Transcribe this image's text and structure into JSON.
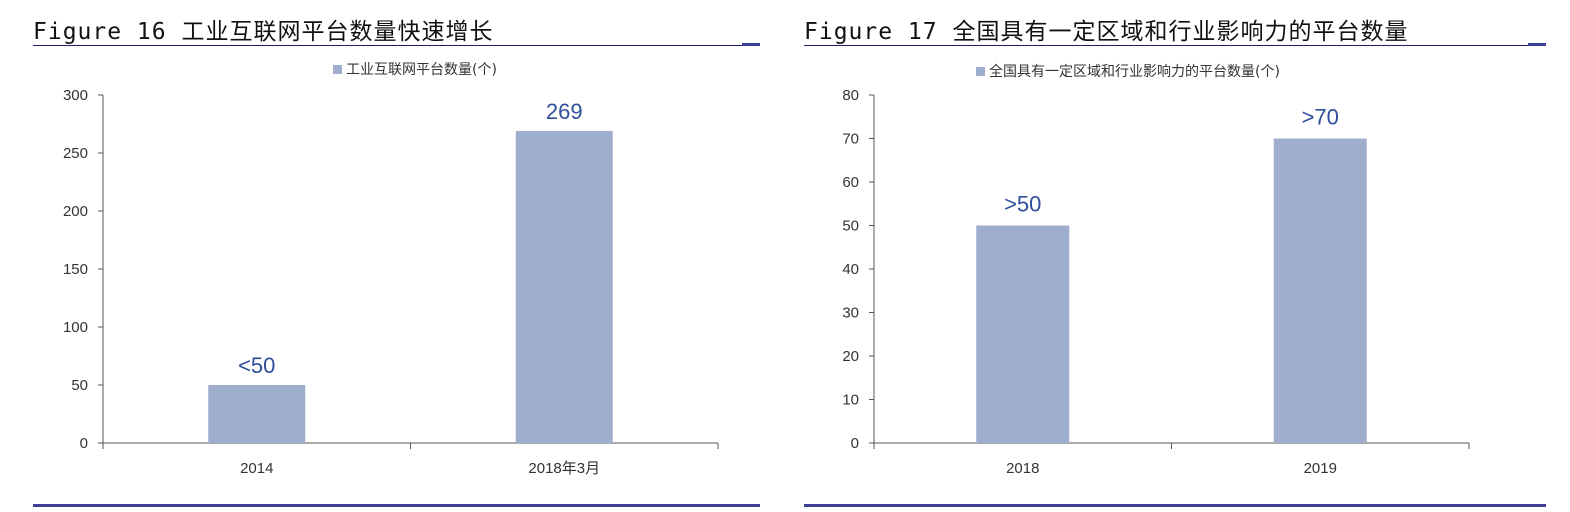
{
  "figures": [
    {
      "title": "Figure 16 工业互联网平台数量快速增长",
      "legend": "工业互联网平台数量(个)",
      "bar_color": "#a0aecd",
      "label_color": "#2f4f9a"
    },
    {
      "title": "Figure 17 全国具有一定区域和行业影响力的平台数量",
      "legend": "全国具有一定区域和行业影响力的平台数量(个)",
      "bar_color": "#a0aecd",
      "label_color": "#2f4f9a"
    }
  ],
  "chart_data": [
    {
      "type": "bar",
      "title": "Figure 16 工业互联网平台数量快速增长",
      "categories": [
        "2014",
        "2018年3月"
      ],
      "series": [
        {
          "name": "工业互联网平台数量(个)",
          "values": [
            50,
            269
          ]
        }
      ],
      "data_labels": [
        "<50",
        "269"
      ],
      "ylim": [
        0,
        300
      ],
      "yticks": [
        0,
        50,
        100,
        150,
        200,
        250,
        300
      ],
      "legend_position": "top-center",
      "grid": false
    },
    {
      "type": "bar",
      "title": "Figure 17 全国具有一定区域和行业影响力的平台数量",
      "categories": [
        "2018",
        "2019"
      ],
      "series": [
        {
          "name": "全国具有一定区域和行业影响力的平台数量(个)",
          "values": [
            50,
            70
          ]
        }
      ],
      "data_labels": [
        ">50",
        ">70"
      ],
      "ylim": [
        0,
        80
      ],
      "yticks": [
        0,
        10,
        20,
        30,
        40,
        50,
        60,
        70,
        80
      ],
      "legend_position": "top-center",
      "grid": false
    }
  ]
}
